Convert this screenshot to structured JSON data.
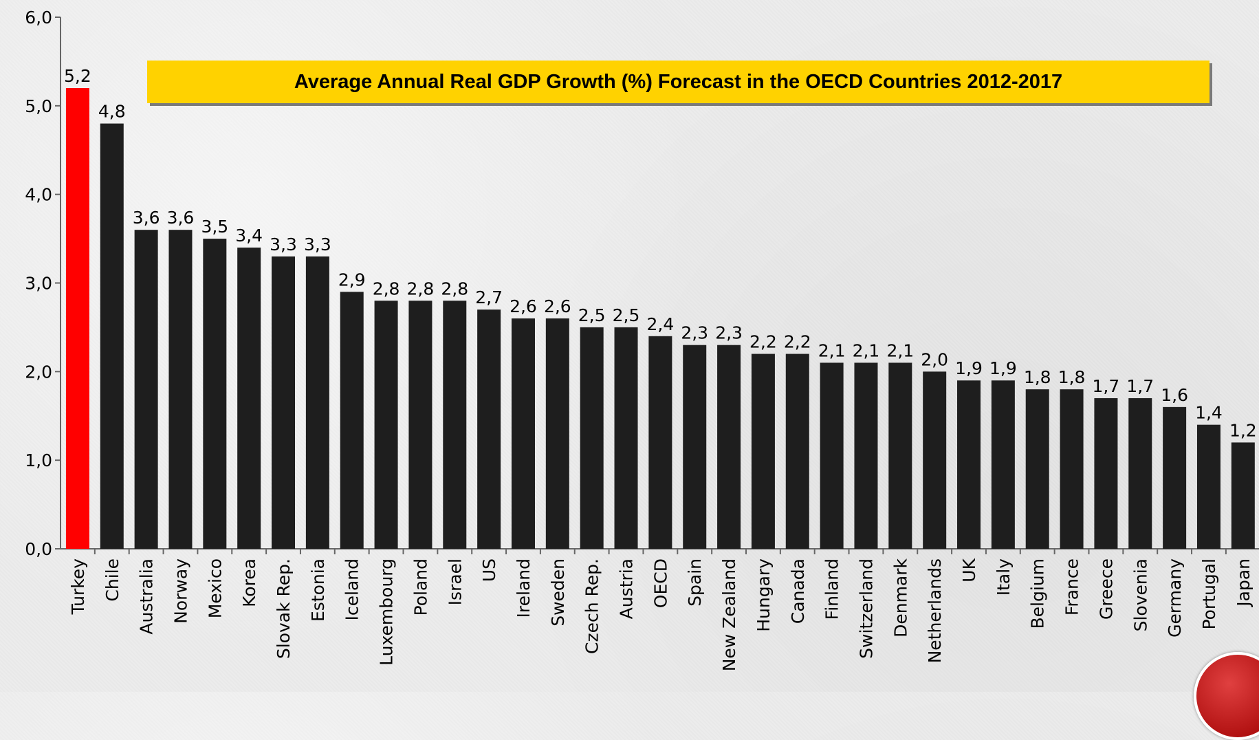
{
  "chart_data": {
    "type": "bar",
    "title": "Average Annual Real GDP Growth (%) Forecast in the OECD Countries 2012-2017",
    "categories": [
      "Turkey",
      "Chile",
      "Australia",
      "Norway",
      "Mexico",
      "Korea",
      "Slovak Rep.",
      "Estonia",
      "Iceland",
      "Luxembourg",
      "Poland",
      "Israel",
      "US",
      "Ireland",
      "Sweden",
      "Czech Rep.",
      "Austria",
      "OECD",
      "Spain",
      "New Zealand",
      "Hungary",
      "Canada",
      "Finland",
      "Switzerland",
      "Denmark",
      "Netherlands",
      "UK",
      "Italy",
      "Belgium",
      "France",
      "Greece",
      "Slovenia",
      "Germany",
      "Portugal",
      "Japan"
    ],
    "values": [
      5.2,
      4.8,
      3.6,
      3.6,
      3.5,
      3.4,
      3.3,
      3.3,
      2.9,
      2.8,
      2.8,
      2.8,
      2.7,
      2.6,
      2.6,
      2.5,
      2.5,
      2.4,
      2.3,
      2.3,
      2.2,
      2.2,
      2.1,
      2.1,
      2.1,
      2.0,
      1.9,
      1.9,
      1.8,
      1.8,
      1.7,
      1.7,
      1.6,
      1.4,
      1.2
    ],
    "value_labels": [
      "5,2",
      "4,8",
      "3,6",
      "3,6",
      "3,5",
      "3,4",
      "3,3",
      "3,3",
      "2,9",
      "2,8",
      "2,8",
      "2,8",
      "2,7",
      "2,6",
      "2,6",
      "2,5",
      "2,5",
      "2,4",
      "2,3",
      "2,3",
      "2,2",
      "2,2",
      "2,1",
      "2,1",
      "2,1",
      "2,0",
      "1,9",
      "1,9",
      "1,8",
      "1,8",
      "1,7",
      "1,7",
      "1,6",
      "1,4",
      "1,2"
    ],
    "ylim": [
      0,
      6
    ],
    "yticks": [
      "0,0",
      "1,0",
      "2,0",
      "3,0",
      "4,0",
      "5,0",
      "6,0"
    ],
    "grid": false,
    "colors": {
      "highlight": "#ff0000",
      "bar": "#1e1e1e"
    },
    "highlight_index": 0
  }
}
